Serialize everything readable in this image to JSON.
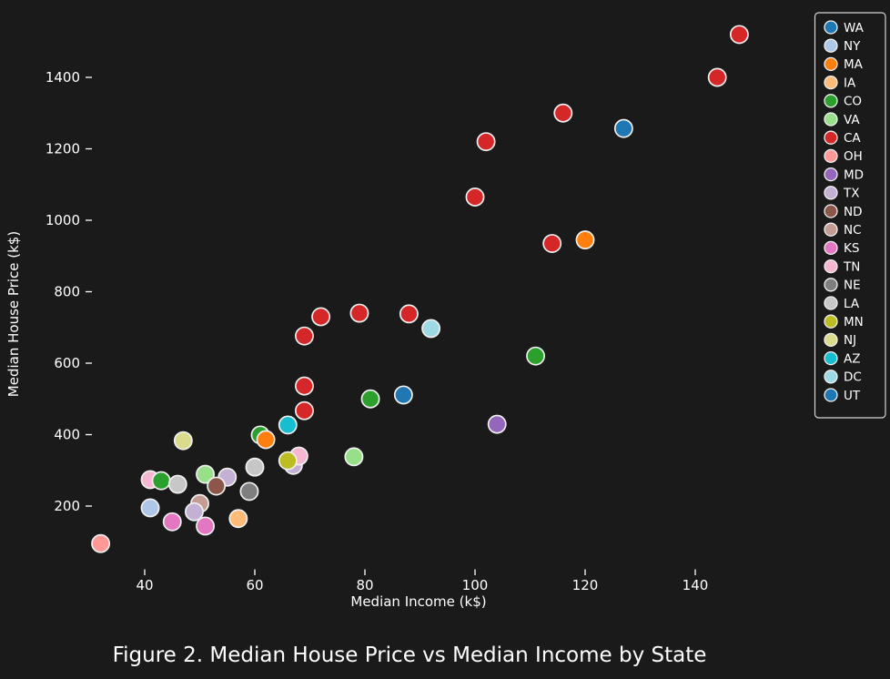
{
  "figure": {
    "background_color": "#1a1a1a",
    "text_color": "#ffffff",
    "caption": "Figure 2. Median House Price vs Median Income by State"
  },
  "chart_data": {
    "type": "scatter",
    "title": "Figure 2. Median House Price vs Median Income by State",
    "xlabel": "Median Income (k$)",
    "ylabel": "Median House Price (k$)",
    "x_ticks": [
      40,
      60,
      80,
      100,
      120,
      140
    ],
    "y_ticks": [
      200,
      400,
      600,
      800,
      1000,
      1200,
      1400
    ],
    "xlim": [
      29,
      160
    ],
    "ylim": [
      0,
      1590
    ],
    "grid": false,
    "legend_position": "upper-right",
    "marker_edge_color": "#f0f0f0",
    "legend": [
      {
        "label": "WA",
        "color": "#1f77b4"
      },
      {
        "label": "NY",
        "color": "#aec7e8"
      },
      {
        "label": "MA",
        "color": "#ff7f0e"
      },
      {
        "label": "IA",
        "color": "#ffbb78"
      },
      {
        "label": "CO",
        "color": "#2ca02c"
      },
      {
        "label": "VA",
        "color": "#98df8a"
      },
      {
        "label": "CA",
        "color": "#d62728"
      },
      {
        "label": "OH",
        "color": "#ff9896"
      },
      {
        "label": "MD",
        "color": "#9467bd"
      },
      {
        "label": "TX",
        "color": "#c5b0d5"
      },
      {
        "label": "ND",
        "color": "#8c564b"
      },
      {
        "label": "NC",
        "color": "#c49c94"
      },
      {
        "label": "KS",
        "color": "#e377c2"
      },
      {
        "label": "TN",
        "color": "#f7b6d2"
      },
      {
        "label": "NE",
        "color": "#7f7f7f"
      },
      {
        "label": "LA",
        "color": "#c7c7c7"
      },
      {
        "label": "MN",
        "color": "#bcbd22"
      },
      {
        "label": "NJ",
        "color": "#dbdb8d"
      },
      {
        "label": "AZ",
        "color": "#17becf"
      },
      {
        "label": "DC",
        "color": "#9edae5"
      },
      {
        "label": "UT",
        "color": "#1f77b4"
      }
    ],
    "points": [
      {
        "state": "CA",
        "income": 148,
        "price": 1520
      },
      {
        "state": "CA",
        "income": 144,
        "price": 1400
      },
      {
        "state": "CA",
        "income": 116,
        "price": 1300
      },
      {
        "state": "WA",
        "income": 127,
        "price": 1257
      },
      {
        "state": "CA",
        "income": 102,
        "price": 1220
      },
      {
        "state": "CA",
        "income": 100,
        "price": 1065
      },
      {
        "state": "MA",
        "income": 120,
        "price": 945
      },
      {
        "state": "CA",
        "income": 114,
        "price": 935
      },
      {
        "state": "CA",
        "income": 79,
        "price": 740
      },
      {
        "state": "CA",
        "income": 88,
        "price": 738
      },
      {
        "state": "CA",
        "income": 72,
        "price": 730
      },
      {
        "state": "DC",
        "income": 92,
        "price": 697
      },
      {
        "state": "CA",
        "income": 69,
        "price": 676
      },
      {
        "state": "CO",
        "income": 111,
        "price": 620
      },
      {
        "state": "CA",
        "income": 69,
        "price": 536
      },
      {
        "state": "UT",
        "income": 87,
        "price": 511
      },
      {
        "state": "CO",
        "income": 81,
        "price": 500
      },
      {
        "state": "CA",
        "income": 69,
        "price": 467
      },
      {
        "state": "MD",
        "income": 104,
        "price": 429
      },
      {
        "state": "AZ",
        "income": 66,
        "price": 427
      },
      {
        "state": "CO",
        "income": 61,
        "price": 399
      },
      {
        "state": "MA",
        "income": 62,
        "price": 386
      },
      {
        "state": "NJ",
        "income": 47,
        "price": 383
      },
      {
        "state": "TX",
        "income": 67,
        "price": 314
      },
      {
        "state": "TN",
        "income": 68,
        "price": 340
      },
      {
        "state": "VA",
        "income": 78,
        "price": 338
      },
      {
        "state": "MN",
        "income": 66,
        "price": 327
      },
      {
        "state": "LA",
        "income": 60,
        "price": 309
      },
      {
        "state": "VA",
        "income": 51,
        "price": 289
      },
      {
        "state": "TX",
        "income": 55,
        "price": 281
      },
      {
        "state": "TN",
        "income": 41,
        "price": 274
      },
      {
        "state": "CO",
        "income": 43,
        "price": 271
      },
      {
        "state": "LA",
        "income": 46,
        "price": 261
      },
      {
        "state": "ND",
        "income": 53,
        "price": 256
      },
      {
        "state": "NE",
        "income": 59,
        "price": 241
      },
      {
        "state": "NC",
        "income": 50,
        "price": 207
      },
      {
        "state": "NY",
        "income": 41,
        "price": 195
      },
      {
        "state": "TX",
        "income": 49,
        "price": 184
      },
      {
        "state": "IA",
        "income": 57,
        "price": 165
      },
      {
        "state": "KS",
        "income": 45,
        "price": 156
      },
      {
        "state": "KS",
        "income": 51,
        "price": 144
      },
      {
        "state": "OH",
        "income": 32,
        "price": 95
      }
    ]
  }
}
